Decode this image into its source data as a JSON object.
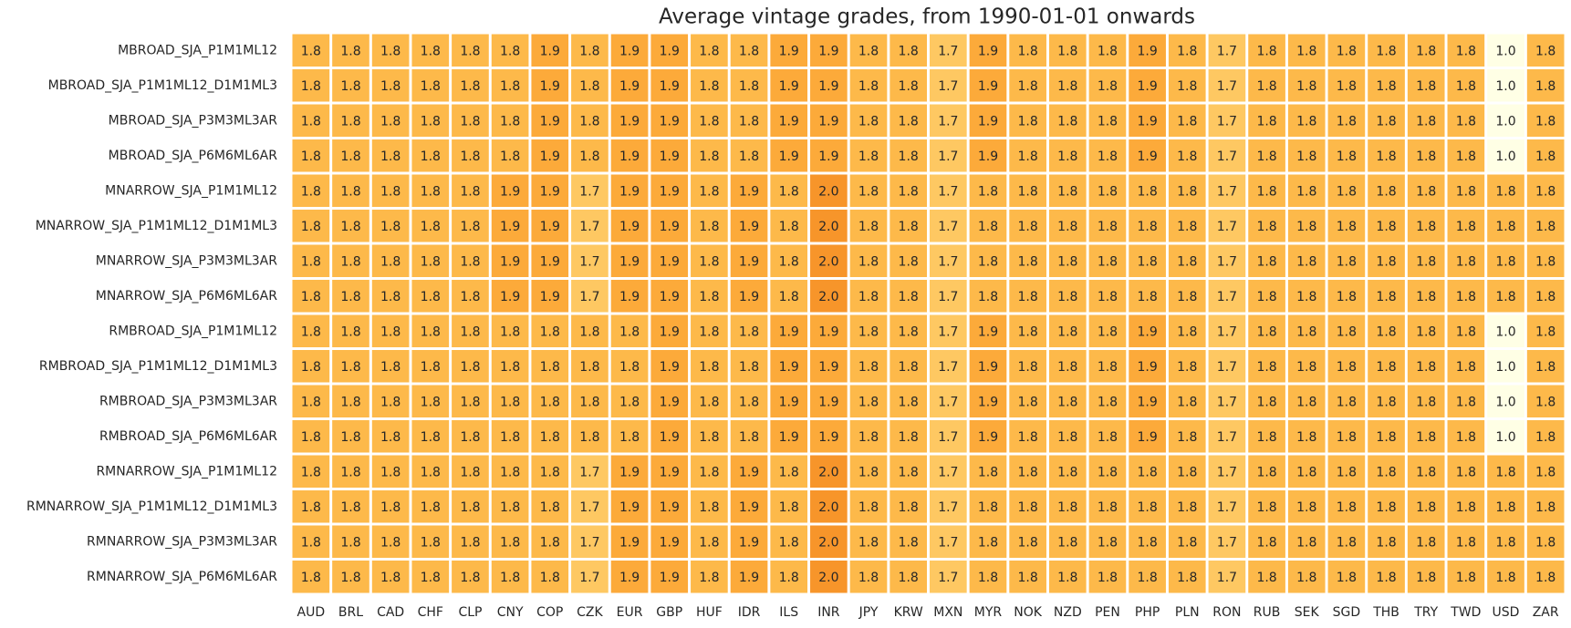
{
  "chart_data": {
    "type": "heatmap",
    "title": "Average vintage grades, from 1990-01-01 onwards",
    "x": [
      "AUD",
      "BRL",
      "CAD",
      "CHF",
      "CLP",
      "CNY",
      "COP",
      "CZK",
      "EUR",
      "GBP",
      "HUF",
      "IDR",
      "ILS",
      "INR",
      "JPY",
      "KRW",
      "MXN",
      "MYR",
      "NOK",
      "NZD",
      "PEN",
      "PHP",
      "PLN",
      "RON",
      "RUB",
      "SEK",
      "SGD",
      "THB",
      "TRY",
      "TWD",
      "USD",
      "ZAR"
    ],
    "y": [
      "MBROAD_SJA_P1M1ML12",
      "MBROAD_SJA_P1M1ML12_D1M1ML3",
      "MBROAD_SJA_P3M3ML3AR",
      "MBROAD_SJA_P6M6ML6AR",
      "MNARROW_SJA_P1M1ML12",
      "MNARROW_SJA_P1M1ML12_D1M1ML3",
      "MNARROW_SJA_P3M3ML3AR",
      "MNARROW_SJA_P6M6ML6AR",
      "RMBROAD_SJA_P1M1ML12",
      "RMBROAD_SJA_P1M1ML12_D1M1ML3",
      "RMBROAD_SJA_P3M3ML3AR",
      "RMBROAD_SJA_P6M6ML6AR",
      "RMNARROW_SJA_P1M1ML12",
      "RMNARROW_SJA_P1M1ML12_D1M1ML3",
      "RMNARROW_SJA_P3M3ML3AR",
      "RMNARROW_SJA_P6M6ML6AR"
    ],
    "values": [
      [
        1.8,
        1.8,
        1.8,
        1.8,
        1.8,
        1.8,
        1.9,
        1.8,
        1.9,
        1.9,
        1.8,
        1.8,
        1.9,
        1.9,
        1.8,
        1.8,
        1.7,
        1.9,
        1.8,
        1.8,
        1.8,
        1.9,
        1.8,
        1.7,
        1.8,
        1.8,
        1.8,
        1.8,
        1.8,
        1.8,
        1.0,
        1.8
      ],
      [
        1.8,
        1.8,
        1.8,
        1.8,
        1.8,
        1.8,
        1.9,
        1.8,
        1.9,
        1.9,
        1.8,
        1.8,
        1.9,
        1.9,
        1.8,
        1.8,
        1.7,
        1.9,
        1.8,
        1.8,
        1.8,
        1.9,
        1.8,
        1.7,
        1.8,
        1.8,
        1.8,
        1.8,
        1.8,
        1.8,
        1.0,
        1.8
      ],
      [
        1.8,
        1.8,
        1.8,
        1.8,
        1.8,
        1.8,
        1.9,
        1.8,
        1.9,
        1.9,
        1.8,
        1.8,
        1.9,
        1.9,
        1.8,
        1.8,
        1.7,
        1.9,
        1.8,
        1.8,
        1.8,
        1.9,
        1.8,
        1.7,
        1.8,
        1.8,
        1.8,
        1.8,
        1.8,
        1.8,
        1.0,
        1.8
      ],
      [
        1.8,
        1.8,
        1.8,
        1.8,
        1.8,
        1.8,
        1.9,
        1.8,
        1.9,
        1.9,
        1.8,
        1.8,
        1.9,
        1.9,
        1.8,
        1.8,
        1.7,
        1.9,
        1.8,
        1.8,
        1.8,
        1.9,
        1.8,
        1.7,
        1.8,
        1.8,
        1.8,
        1.8,
        1.8,
        1.8,
        1.0,
        1.8
      ],
      [
        1.8,
        1.8,
        1.8,
        1.8,
        1.8,
        1.9,
        1.9,
        1.7,
        1.9,
        1.9,
        1.8,
        1.9,
        1.8,
        2.0,
        1.8,
        1.8,
        1.7,
        1.8,
        1.8,
        1.8,
        1.8,
        1.8,
        1.8,
        1.7,
        1.8,
        1.8,
        1.8,
        1.8,
        1.8,
        1.8,
        1.8,
        1.8
      ],
      [
        1.8,
        1.8,
        1.8,
        1.8,
        1.8,
        1.9,
        1.9,
        1.7,
        1.9,
        1.9,
        1.8,
        1.9,
        1.8,
        2.0,
        1.8,
        1.8,
        1.7,
        1.8,
        1.8,
        1.8,
        1.8,
        1.8,
        1.8,
        1.7,
        1.8,
        1.8,
        1.8,
        1.8,
        1.8,
        1.8,
        1.8,
        1.8
      ],
      [
        1.8,
        1.8,
        1.8,
        1.8,
        1.8,
        1.9,
        1.9,
        1.7,
        1.9,
        1.9,
        1.8,
        1.9,
        1.8,
        2.0,
        1.8,
        1.8,
        1.7,
        1.8,
        1.8,
        1.8,
        1.8,
        1.8,
        1.8,
        1.7,
        1.8,
        1.8,
        1.8,
        1.8,
        1.8,
        1.8,
        1.8,
        1.8
      ],
      [
        1.8,
        1.8,
        1.8,
        1.8,
        1.8,
        1.9,
        1.9,
        1.7,
        1.9,
        1.9,
        1.8,
        1.9,
        1.8,
        2.0,
        1.8,
        1.8,
        1.7,
        1.8,
        1.8,
        1.8,
        1.8,
        1.8,
        1.8,
        1.7,
        1.8,
        1.8,
        1.8,
        1.8,
        1.8,
        1.8,
        1.8,
        1.8
      ],
      [
        1.8,
        1.8,
        1.8,
        1.8,
        1.8,
        1.8,
        1.8,
        1.8,
        1.8,
        1.9,
        1.8,
        1.8,
        1.9,
        1.9,
        1.8,
        1.8,
        1.7,
        1.9,
        1.8,
        1.8,
        1.8,
        1.9,
        1.8,
        1.7,
        1.8,
        1.8,
        1.8,
        1.8,
        1.8,
        1.8,
        1.0,
        1.8
      ],
      [
        1.8,
        1.8,
        1.8,
        1.8,
        1.8,
        1.8,
        1.8,
        1.8,
        1.8,
        1.9,
        1.8,
        1.8,
        1.9,
        1.9,
        1.8,
        1.8,
        1.7,
        1.9,
        1.8,
        1.8,
        1.8,
        1.9,
        1.8,
        1.7,
        1.8,
        1.8,
        1.8,
        1.8,
        1.8,
        1.8,
        1.0,
        1.8
      ],
      [
        1.8,
        1.8,
        1.8,
        1.8,
        1.8,
        1.8,
        1.8,
        1.8,
        1.8,
        1.9,
        1.8,
        1.8,
        1.9,
        1.9,
        1.8,
        1.8,
        1.7,
        1.9,
        1.8,
        1.8,
        1.8,
        1.9,
        1.8,
        1.7,
        1.8,
        1.8,
        1.8,
        1.8,
        1.8,
        1.8,
        1.0,
        1.8
      ],
      [
        1.8,
        1.8,
        1.8,
        1.8,
        1.8,
        1.8,
        1.8,
        1.8,
        1.8,
        1.9,
        1.8,
        1.8,
        1.9,
        1.9,
        1.8,
        1.8,
        1.7,
        1.9,
        1.8,
        1.8,
        1.8,
        1.9,
        1.8,
        1.7,
        1.8,
        1.8,
        1.8,
        1.8,
        1.8,
        1.8,
        1.0,
        1.8
      ],
      [
        1.8,
        1.8,
        1.8,
        1.8,
        1.8,
        1.8,
        1.8,
        1.7,
        1.9,
        1.9,
        1.8,
        1.9,
        1.8,
        2.0,
        1.8,
        1.8,
        1.7,
        1.8,
        1.8,
        1.8,
        1.8,
        1.8,
        1.8,
        1.7,
        1.8,
        1.8,
        1.8,
        1.8,
        1.8,
        1.8,
        1.8,
        1.8
      ],
      [
        1.8,
        1.8,
        1.8,
        1.8,
        1.8,
        1.8,
        1.8,
        1.7,
        1.9,
        1.9,
        1.8,
        1.9,
        1.8,
        2.0,
        1.8,
        1.8,
        1.7,
        1.8,
        1.8,
        1.8,
        1.8,
        1.8,
        1.8,
        1.7,
        1.8,
        1.8,
        1.8,
        1.8,
        1.8,
        1.8,
        1.8,
        1.8
      ],
      [
        1.8,
        1.8,
        1.8,
        1.8,
        1.8,
        1.8,
        1.8,
        1.7,
        1.9,
        1.9,
        1.8,
        1.9,
        1.8,
        2.0,
        1.8,
        1.8,
        1.7,
        1.8,
        1.8,
        1.8,
        1.8,
        1.8,
        1.8,
        1.7,
        1.8,
        1.8,
        1.8,
        1.8,
        1.8,
        1.8,
        1.8,
        1.8
      ],
      [
        1.8,
        1.8,
        1.8,
        1.8,
        1.8,
        1.8,
        1.8,
        1.7,
        1.9,
        1.9,
        1.8,
        1.9,
        1.8,
        2.0,
        1.8,
        1.8,
        1.7,
        1.8,
        1.8,
        1.8,
        1.8,
        1.8,
        1.8,
        1.7,
        1.8,
        1.8,
        1.8,
        1.8,
        1.8,
        1.8,
        1.8,
        1.8
      ]
    ],
    "value_labels": [
      [
        "1.8",
        "1.8",
        "1.8",
        "1.8",
        "1.8",
        "1.8",
        "1.9",
        "1.8",
        "1.9",
        "1.9",
        "1.8",
        "1.8",
        "1.9",
        "1.9",
        "1.8",
        "1.8",
        "1.7",
        "1.9",
        "1.8",
        "1.8",
        "1.8",
        "1.9",
        "1.8",
        "1.7",
        "1.8",
        "1.8",
        "1.8",
        "1.8",
        "1.8",
        "1.8",
        "1.0",
        "1.8"
      ],
      [
        "1.8",
        "1.8",
        "1.8",
        "1.8",
        "1.8",
        "1.8",
        "1.9",
        "1.8",
        "1.9",
        "1.9",
        "1.8",
        "1.8",
        "1.9",
        "1.9",
        "1.8",
        "1.8",
        "1.7",
        "1.9",
        "1.8",
        "1.8",
        "1.8",
        "1.9",
        "1.8",
        "1.7",
        "1.8",
        "1.8",
        "1.8",
        "1.8",
        "1.8",
        "1.8",
        "1.0",
        "1.8"
      ],
      [
        "1.8",
        "1.8",
        "1.8",
        "1.8",
        "1.8",
        "1.8",
        "1.9",
        "1.8",
        "1.9",
        "1.9",
        "1.8",
        "1.8",
        "1.9",
        "1.9",
        "1.8",
        "1.8",
        "1.7",
        "1.9",
        "1.8",
        "1.8",
        "1.8",
        "1.9",
        "1.8",
        "1.7",
        "1.8",
        "1.8",
        "1.8",
        "1.8",
        "1.8",
        "1.8",
        "1.0",
        "1.8"
      ],
      [
        "1.8",
        "1.8",
        "1.8",
        "1.8",
        "1.8",
        "1.8",
        "1.9",
        "1.8",
        "1.9",
        "1.9",
        "1.8",
        "1.8",
        "1.9",
        "1.9",
        "1.8",
        "1.8",
        "1.7",
        "1.9",
        "1.8",
        "1.8",
        "1.8",
        "1.9",
        "1.8",
        "1.7",
        "1.8",
        "1.8",
        "1.8",
        "1.8",
        "1.8",
        "1.8",
        "1.0",
        "1.8"
      ],
      [
        "1.8",
        "1.8",
        "1.8",
        "1.8",
        "1.8",
        "1.9",
        "1.9",
        "1.7",
        "1.9",
        "1.9",
        "1.8",
        "1.9",
        "1.8",
        "2.0",
        "1.8",
        "1.8",
        "1.7",
        "1.8",
        "1.8",
        "1.8",
        "1.8",
        "1.8",
        "1.8",
        "1.7",
        "1.8",
        "1.8",
        "1.8",
        "1.8",
        "1.8",
        "1.8",
        "1.8",
        "1.8"
      ],
      [
        "1.8",
        "1.8",
        "1.8",
        "1.8",
        "1.8",
        "1.9",
        "1.9",
        "1.7",
        "1.9",
        "1.9",
        "1.8",
        "1.9",
        "1.8",
        "2.0",
        "1.8",
        "1.8",
        "1.7",
        "1.8",
        "1.8",
        "1.8",
        "1.8",
        "1.8",
        "1.8",
        "1.7",
        "1.8",
        "1.8",
        "1.8",
        "1.8",
        "1.8",
        "1.8",
        "1.8",
        "1.8"
      ],
      [
        "1.8",
        "1.8",
        "1.8",
        "1.8",
        "1.8",
        "1.9",
        "1.9",
        "1.7",
        "1.9",
        "1.9",
        "1.8",
        "1.9",
        "1.8",
        "2.0",
        "1.8",
        "1.8",
        "1.7",
        "1.8",
        "1.8",
        "1.8",
        "1.8",
        "1.8",
        "1.8",
        "1.7",
        "1.8",
        "1.8",
        "1.8",
        "1.8",
        "1.8",
        "1.8",
        "1.8",
        "1.8"
      ],
      [
        "1.8",
        "1.8",
        "1.8",
        "1.8",
        "1.8",
        "1.9",
        "1.9",
        "1.7",
        "1.9",
        "1.9",
        "1.8",
        "1.9",
        "1.8",
        "2.0",
        "1.8",
        "1.8",
        "1.7",
        "1.8",
        "1.8",
        "1.8",
        "1.8",
        "1.8",
        "1.8",
        "1.7",
        "1.8",
        "1.8",
        "1.8",
        "1.8",
        "1.8",
        "1.8",
        "1.8",
        "1.8"
      ],
      [
        "1.8",
        "1.8",
        "1.8",
        "1.8",
        "1.8",
        "1.8",
        "1.8",
        "1.8",
        "1.8",
        "1.9",
        "1.8",
        "1.8",
        "1.9",
        "1.9",
        "1.8",
        "1.8",
        "1.7",
        "1.9",
        "1.8",
        "1.8",
        "1.8",
        "1.9",
        "1.8",
        "1.7",
        "1.8",
        "1.8",
        "1.8",
        "1.8",
        "1.8",
        "1.8",
        "1.0",
        "1.8"
      ],
      [
        "1.8",
        "1.8",
        "1.8",
        "1.8",
        "1.8",
        "1.8",
        "1.8",
        "1.8",
        "1.8",
        "1.9",
        "1.8",
        "1.8",
        "1.9",
        "1.9",
        "1.8",
        "1.8",
        "1.7",
        "1.9",
        "1.8",
        "1.8",
        "1.8",
        "1.9",
        "1.8",
        "1.7",
        "1.8",
        "1.8",
        "1.8",
        "1.8",
        "1.8",
        "1.8",
        "1.0",
        "1.8"
      ],
      [
        "1.8",
        "1.8",
        "1.8",
        "1.8",
        "1.8",
        "1.8",
        "1.8",
        "1.8",
        "1.8",
        "1.9",
        "1.8",
        "1.8",
        "1.9",
        "1.9",
        "1.8",
        "1.8",
        "1.7",
        "1.9",
        "1.8",
        "1.8",
        "1.8",
        "1.9",
        "1.8",
        "1.7",
        "1.8",
        "1.8",
        "1.8",
        "1.8",
        "1.8",
        "1.8",
        "1.0",
        "1.8"
      ],
      [
        "1.8",
        "1.8",
        "1.8",
        "1.8",
        "1.8",
        "1.8",
        "1.8",
        "1.8",
        "1.8",
        "1.9",
        "1.8",
        "1.8",
        "1.9",
        "1.9",
        "1.8",
        "1.8",
        "1.7",
        "1.9",
        "1.8",
        "1.8",
        "1.8",
        "1.9",
        "1.8",
        "1.7",
        "1.8",
        "1.8",
        "1.8",
        "1.8",
        "1.8",
        "1.8",
        "1.0",
        "1.8"
      ],
      [
        "1.8",
        "1.8",
        "1.8",
        "1.8",
        "1.8",
        "1.8",
        "1.8",
        "1.7",
        "1.9",
        "1.9",
        "1.8",
        "1.9",
        "1.8",
        "2.0",
        "1.8",
        "1.8",
        "1.7",
        "1.8",
        "1.8",
        "1.8",
        "1.8",
        "1.8",
        "1.8",
        "1.7",
        "1.8",
        "1.8",
        "1.8",
        "1.8",
        "1.8",
        "1.8",
        "1.8",
        "1.8"
      ],
      [
        "1.8",
        "1.8",
        "1.8",
        "1.8",
        "1.8",
        "1.8",
        "1.8",
        "1.7",
        "1.9",
        "1.9",
        "1.8",
        "1.9",
        "1.8",
        "2.0",
        "1.8",
        "1.8",
        "1.7",
        "1.8",
        "1.8",
        "1.8",
        "1.8",
        "1.8",
        "1.8",
        "1.7",
        "1.8",
        "1.8",
        "1.8",
        "1.8",
        "1.8",
        "1.8",
        "1.8",
        "1.8"
      ],
      [
        "1.8",
        "1.8",
        "1.8",
        "1.8",
        "1.8",
        "1.8",
        "1.8",
        "1.7",
        "1.9",
        "1.9",
        "1.8",
        "1.9",
        "1.8",
        "2.0",
        "1.8",
        "1.8",
        "1.7",
        "1.8",
        "1.8",
        "1.8",
        "1.8",
        "1.8",
        "1.8",
        "1.7",
        "1.8",
        "1.8",
        "1.8",
        "1.8",
        "1.8",
        "1.8",
        "1.8",
        "1.8"
      ],
      [
        "1.8",
        "1.8",
        "1.8",
        "1.8",
        "1.8",
        "1.8",
        "1.8",
        "1.7",
        "1.9",
        "1.9",
        "1.8",
        "1.9",
        "1.8",
        "2.0",
        "1.8",
        "1.8",
        "1.7",
        "1.8",
        "1.8",
        "1.8",
        "1.8",
        "1.8",
        "1.8",
        "1.7",
        "1.8",
        "1.8",
        "1.8",
        "1.8",
        "1.8",
        "1.8",
        "1.8",
        "1.8"
      ]
    ]
  }
}
